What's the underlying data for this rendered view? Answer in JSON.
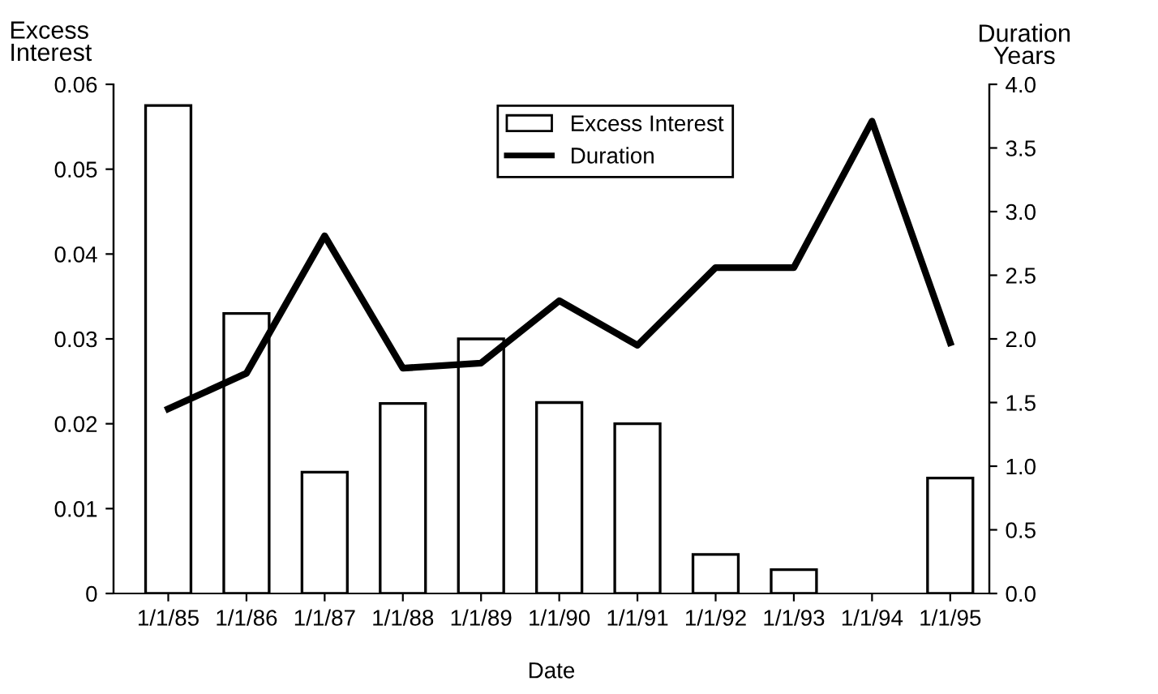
{
  "chart_data": {
    "type": "bar",
    "ylabel": "Excess\nInterest",
    "y2label": "Duration\nYears",
    "xlabel": "Date",
    "categories": [
      "1/1/85",
      "1/1/86",
      "1/1/87",
      "1/1/88",
      "1/1/89",
      "1/1/90",
      "1/1/91",
      "1/1/92",
      "1/1/93",
      "1/1/94",
      "1/1/95"
    ],
    "series": [
      {
        "name": "Excess Interest",
        "color": "#ffffff",
        "values": [
          0.0575,
          0.033,
          0.0143,
          0.0224,
          0.03,
          0.0225,
          0.02,
          0.0046,
          0.0028,
          null,
          0.0136
        ]
      },
      {
        "name": "Duration",
        "type": "line",
        "axis": "y2",
        "color": "#000000",
        "values": [
          1.45,
          1.73,
          2.81,
          1.77,
          1.81,
          2.3,
          1.95,
          2.56,
          2.56,
          3.71,
          1.97
        ]
      }
    ],
    "ylim": [
      0,
      0.06
    ],
    "yticks": [
      0,
      0.01,
      0.02,
      0.03,
      0.04,
      0.05,
      0.06
    ],
    "y2lim": [
      0,
      4.0
    ],
    "y2ticks": [
      {
        "value": 0,
        "label": "0.0"
      },
      0.5,
      {
        "value": 1,
        "label": "1.0"
      },
      1.5,
      {
        "value": 2,
        "label": "2.0"
      },
      2.5,
      {
        "value": 3,
        "label": "3.0"
      },
      3.5,
      {
        "value": 4,
        "label": "4.0"
      }
    ],
    "legend": "top right",
    "grid": false
  }
}
